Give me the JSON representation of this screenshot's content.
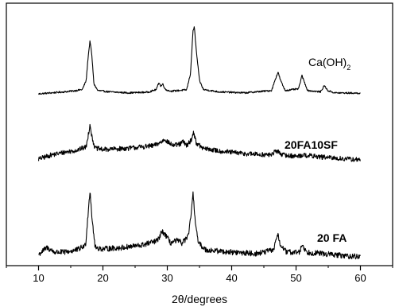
{
  "chart_data": {
    "type": "line",
    "title": "",
    "xlabel": "2θ/degrees",
    "ylabel": "",
    "xlim": [
      5,
      65
    ],
    "xticks": [
      10,
      20,
      30,
      40,
      50,
      60
    ],
    "grid": false,
    "series": [
      {
        "name": "Ca(OH)",
        "name_sub": "2",
        "label_weight": "normal",
        "baseline": 0.0,
        "noise": 0.25,
        "points": [
          [
            10,
            0
          ],
          [
            12,
            0.3
          ],
          [
            14,
            0.6
          ],
          [
            15.5,
            0.9
          ],
          [
            16.8,
            1.3
          ],
          [
            17.4,
            4
          ],
          [
            17.7,
            11
          ],
          [
            18.0,
            16
          ],
          [
            18.3,
            11
          ],
          [
            18.6,
            3
          ],
          [
            19.2,
            1
          ],
          [
            21,
            0.6
          ],
          [
            24,
            0.3
          ],
          [
            27,
            0.5
          ],
          [
            28.3,
            1.3
          ],
          [
            28.7,
            3.5
          ],
          [
            29.0,
            2.2
          ],
          [
            29.3,
            3.0
          ],
          [
            29.7,
            1.3
          ],
          [
            30.5,
            0.8
          ],
          [
            33.0,
            1.2
          ],
          [
            33.6,
            6
          ],
          [
            34.0,
            19
          ],
          [
            34.2,
            20
          ],
          [
            34.5,
            13
          ],
          [
            35.0,
            4
          ],
          [
            35.6,
            1.3
          ],
          [
            38,
            0.6
          ],
          [
            42,
            0.3
          ],
          [
            46.2,
            1
          ],
          [
            46.8,
            4.5
          ],
          [
            47.2,
            6.5
          ],
          [
            47.6,
            4
          ],
          [
            48.3,
            1
          ],
          [
            50.4,
            1.5
          ],
          [
            50.9,
            5.5
          ],
          [
            51.2,
            4
          ],
          [
            51.8,
            1
          ],
          [
            53.8,
            0.6
          ],
          [
            54.4,
            2.5
          ],
          [
            54.9,
            1
          ],
          [
            56,
            0.3
          ],
          [
            60,
            0.2
          ]
        ]
      },
      {
        "name": "20FA10SF",
        "name_sub": "",
        "label_weight": "bold",
        "baseline": 0.0,
        "noise": 0.9,
        "points": [
          [
            10,
            0
          ],
          [
            12,
            1.5
          ],
          [
            14,
            2.5
          ],
          [
            16,
            3.3
          ],
          [
            17.4,
            4.5
          ],
          [
            17.8,
            10
          ],
          [
            18.0,
            13
          ],
          [
            18.3,
            8
          ],
          [
            18.8,
            4
          ],
          [
            20,
            3.5
          ],
          [
            24,
            4
          ],
          [
            28,
            5
          ],
          [
            29.2,
            6.5
          ],
          [
            29.6,
            7.5
          ],
          [
            30.2,
            6
          ],
          [
            31,
            5
          ],
          [
            32,
            5.5
          ],
          [
            32.4,
            6.5
          ],
          [
            33,
            5
          ],
          [
            33.7,
            7
          ],
          [
            34.1,
            10
          ],
          [
            34.5,
            6
          ],
          [
            35.5,
            4
          ],
          [
            38,
            3
          ],
          [
            42,
            2
          ],
          [
            46,
            1.5
          ],
          [
            47.0,
            3
          ],
          [
            48,
            1.5
          ],
          [
            50,
            1
          ],
          [
            51,
            1.5
          ],
          [
            55,
            0.5
          ],
          [
            60,
            -0.3
          ]
        ]
      },
      {
        "name": "20 FA",
        "name_sub": "",
        "label_weight": "bold",
        "baseline": 0.0,
        "noise": 0.6,
        "points": [
          [
            10,
            0
          ],
          [
            11.3,
            1.5
          ],
          [
            12.5,
            0.5
          ],
          [
            14,
            0.5
          ],
          [
            16,
            1
          ],
          [
            17.3,
            2
          ],
          [
            17.7,
            9
          ],
          [
            18.0,
            14
          ],
          [
            18.3,
            8
          ],
          [
            18.8,
            1.5
          ],
          [
            20,
            1.2
          ],
          [
            23,
            1.5
          ],
          [
            26,
            2
          ],
          [
            28.5,
            3
          ],
          [
            29.2,
            5
          ],
          [
            29.6,
            4.5
          ],
          [
            30.5,
            2.5
          ],
          [
            31.5,
            3
          ],
          [
            32.3,
            2.5
          ],
          [
            33.3,
            4
          ],
          [
            33.7,
            9
          ],
          [
            34.0,
            13
          ],
          [
            34.3,
            8
          ],
          [
            34.8,
            2.5
          ],
          [
            36,
            1
          ],
          [
            40,
            0.5
          ],
          [
            44,
            0.2
          ],
          [
            46.5,
            1
          ],
          [
            47.1,
            4.5
          ],
          [
            47.6,
            2
          ],
          [
            48.5,
            0.5
          ],
          [
            50.5,
            0.5
          ],
          [
            51.0,
            2.2
          ],
          [
            51.6,
            0.5
          ],
          [
            54,
            0.2
          ],
          [
            57,
            -0.2
          ],
          [
            60,
            -0.5
          ]
        ]
      }
    ]
  }
}
